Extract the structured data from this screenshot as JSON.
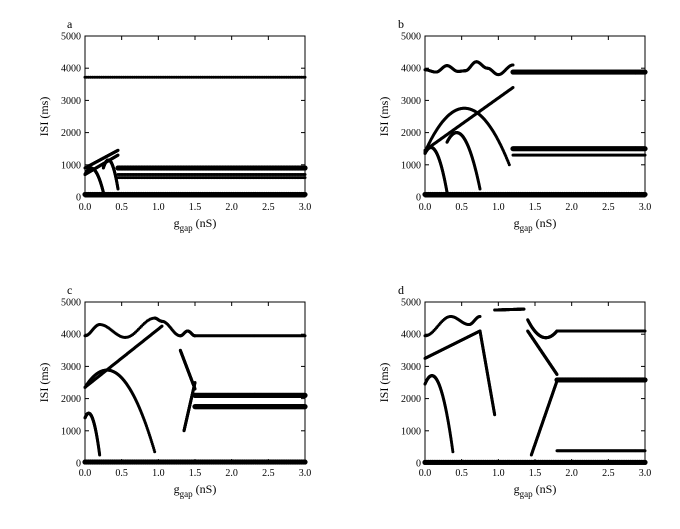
{
  "colors": {
    "ink": "#000000",
    "background": "#ffffff"
  },
  "chart_data": [
    {
      "panel": "a",
      "type": "scatter",
      "title": "",
      "xlabel": {
        "main": "g",
        "sub": "gap",
        "unit": " (nS)"
      },
      "ylabel": "ISI (ms)",
      "xlim": [
        0,
        3.0
      ],
      "ylim": [
        0,
        5000
      ],
      "xticks": [
        "0.0",
        "0.5",
        "1.0",
        "1.5",
        "2.0",
        "2.5",
        "3.0"
      ],
      "yticks": [
        "0",
        "1000",
        "2000",
        "3000",
        "4000",
        "5000"
      ],
      "series": [
        {
          "name": "branch-top",
          "x0": 0.0,
          "x1": 3.0,
          "y0": 3720,
          "y1": 3720,
          "bumps": [
            [
              0.2,
              3780
            ],
            [
              0.4,
              3800
            ],
            [
              0.47,
              3740
            ]
          ]
        },
        {
          "name": "band-upper",
          "x0": 0.45,
          "x1": 3.0,
          "y0": 900,
          "y1": 900,
          "thick": true
        },
        {
          "name": "band-mid",
          "x0": 0.45,
          "x1": 3.0,
          "y0": 700,
          "y1": 700
        },
        {
          "name": "band-low",
          "x0": 0.45,
          "x1": 3.0,
          "y0": 600,
          "y1": 600
        },
        {
          "name": "base",
          "x0": 0.0,
          "x1": 3.0,
          "y0": 80,
          "y1": 80,
          "thick": true
        },
        {
          "name": "rise-1",
          "x0": 0.0,
          "x1": 0.45,
          "y0": 900,
          "y1": 1450
        },
        {
          "name": "rise-2",
          "x0": 0.0,
          "x1": 0.45,
          "y0": 700,
          "y1": 1300
        },
        {
          "name": "arc-1",
          "x0": 0.0,
          "x1": 0.25,
          "y0": 700,
          "y1": 150,
          "peak": 850
        },
        {
          "name": "arc-2",
          "x0": 0.25,
          "x1": 0.45,
          "y0": 900,
          "y1": 250,
          "peak": 1100
        }
      ]
    },
    {
      "panel": "b",
      "type": "scatter",
      "title": "",
      "xlabel": {
        "main": "g",
        "sub": "gap",
        "unit": " (nS)"
      },
      "ylabel": "ISI (ms)",
      "xlim": [
        0,
        3.0
      ],
      "ylim": [
        0,
        5000
      ],
      "xticks": [
        "0.0",
        "0.5",
        "1.0",
        "1.5",
        "2.0",
        "2.5",
        "3.0"
      ],
      "yticks": [
        "0",
        "1000",
        "2000",
        "3000",
        "4000",
        "5000"
      ],
      "series": [
        {
          "name": "wave-top",
          "x0": 0.0,
          "x1": 1.2,
          "y0": 3950,
          "y1": 4100,
          "wave": [
            [
              0.0,
              3950
            ],
            [
              0.15,
              3880
            ],
            [
              0.3,
              4080
            ],
            [
              0.45,
              3900
            ],
            [
              0.55,
              3920
            ],
            [
              0.7,
              4200
            ],
            [
              0.85,
              4000
            ],
            [
              1.0,
              3800
            ],
            [
              1.2,
              4100
            ]
          ]
        },
        {
          "name": "plateau-top",
          "x0": 1.2,
          "x1": 3.0,
          "y0": 3880,
          "y1": 3880,
          "thick": true
        },
        {
          "name": "plateau-upper",
          "x0": 1.2,
          "x1": 3.0,
          "y0": 1500,
          "y1": 1500,
          "thick": true
        },
        {
          "name": "plateau-lower",
          "x0": 1.2,
          "x1": 3.0,
          "y0": 1300,
          "y1": 1300
        },
        {
          "name": "base",
          "x0": 0.0,
          "x1": 3.0,
          "y0": 80,
          "y1": 80,
          "thick": true
        },
        {
          "name": "rise-1",
          "x0": 0.0,
          "x1": 1.2,
          "y0": 1450,
          "y1": 3400
        },
        {
          "name": "arc-1",
          "x0": 0.0,
          "x1": 1.15,
          "y0": 1400,
          "y1": 1000,
          "peak": 2750
        },
        {
          "name": "arc-2",
          "x0": 0.0,
          "x1": 0.3,
          "y0": 1350,
          "y1": 150,
          "peak": 1400
        },
        {
          "name": "arc-3",
          "x0": 0.3,
          "x1": 0.75,
          "y0": 1700,
          "y1": 250,
          "peak": 1850
        }
      ]
    },
    {
      "panel": "c",
      "type": "scatter",
      "title": "",
      "xlabel": {
        "main": "g",
        "sub": "gap",
        "unit": " (nS)"
      },
      "ylabel": "ISI (ms)",
      "xlim": [
        0,
        3.0
      ],
      "ylim": [
        0,
        5000
      ],
      "xticks": [
        "0.0",
        "0.5",
        "1.0",
        "1.5",
        "2.0",
        "2.5",
        "3.0"
      ],
      "yticks": [
        "0",
        "1000",
        "2000",
        "3000",
        "4000",
        "5000"
      ],
      "series": [
        {
          "name": "wave-top",
          "x0": 0.0,
          "x1": 1.5,
          "y0": 3950,
          "y1": 3950,
          "wave": [
            [
              0.0,
              3950
            ],
            [
              0.2,
              4300
            ],
            [
              0.55,
              3900
            ],
            [
              0.95,
              4500
            ],
            [
              1.05,
              4400
            ],
            [
              1.3,
              3950
            ],
            [
              1.4,
              4100
            ],
            [
              1.5,
              3950
            ]
          ]
        },
        {
          "name": "plateau-top",
          "x0": 1.5,
          "x1": 3.0,
          "y0": 3950,
          "y1": 3950
        },
        {
          "name": "plateau-upper",
          "x0": 1.5,
          "x1": 3.0,
          "y0": 2100,
          "y1": 2100,
          "thick": true
        },
        {
          "name": "plateau-lower",
          "x0": 1.5,
          "x1": 3.0,
          "y0": 1750,
          "y1": 1750,
          "thick": true
        },
        {
          "name": "base",
          "x0": 0.0,
          "x1": 3.0,
          "y0": 30,
          "y1": 30,
          "thick": true
        },
        {
          "name": "rise-1",
          "x0": 0.0,
          "x1": 1.05,
          "y0": 2350,
          "y1": 4250
        },
        {
          "name": "arc-1",
          "x0": 0.0,
          "x1": 0.95,
          "y0": 2350,
          "y1": 350,
          "peak": 2700
        },
        {
          "name": "arc-2",
          "x0": 0.0,
          "x1": 0.2,
          "y0": 1400,
          "y1": 250,
          "peak": 1400
        },
        {
          "name": "drop-1",
          "x0": 1.3,
          "x1": 1.5,
          "y0": 3500,
          "y1": 2300
        },
        {
          "name": "rise-2",
          "x0": 1.35,
          "x1": 1.5,
          "y0": 1000,
          "y1": 2500
        }
      ]
    },
    {
      "panel": "d",
      "type": "scatter",
      "title": "",
      "xlabel": {
        "main": "g",
        "sub": "gap",
        "unit": " (nS)"
      },
      "ylabel": "ISI (ms)",
      "xlim": [
        0,
        3.0
      ],
      "ylim": [
        0,
        5000
      ],
      "xticks": [
        "0.0",
        "0.5",
        "1.0",
        "1.5",
        "2.0",
        "2.5",
        "3.0"
      ],
      "yticks": [
        "0",
        "1000",
        "2000",
        "3000",
        "4000",
        "5000"
      ],
      "series": [
        {
          "name": "wave-top",
          "x0": 0.0,
          "x1": 0.75,
          "y0": 3950,
          "y1": 4250,
          "wave": [
            [
              0.0,
              3950
            ],
            [
              0.35,
              4550
            ],
            [
              0.6,
              4300
            ],
            [
              0.75,
              4550
            ]
          ]
        },
        {
          "name": "hump-top",
          "x0": 0.95,
          "x1": 1.35,
          "y0": 4750,
          "y1": 4780
        },
        {
          "name": "arc-right",
          "x0": 1.4,
          "x1": 1.8,
          "y0": 4450,
          "y1": 4100,
          "peak": 3850,
          "dip": true
        },
        {
          "name": "plateau-top",
          "x0": 1.8,
          "x1": 3.0,
          "y0": 4100,
          "y1": 4100
        },
        {
          "name": "plateau-upper",
          "x0": 1.8,
          "x1": 3.0,
          "y0": 2580,
          "y1": 2580,
          "thick": true
        },
        {
          "name": "plateau-low",
          "x0": 1.8,
          "x1": 3.0,
          "y0": 380,
          "y1": 380
        },
        {
          "name": "base",
          "x0": 0.0,
          "x1": 3.0,
          "y0": 20,
          "y1": 20,
          "thick": true
        },
        {
          "name": "rise-1",
          "x0": 0.0,
          "x1": 0.75,
          "y0": 3250,
          "y1": 4100
        },
        {
          "name": "drop-1",
          "x0": 0.75,
          "x1": 0.95,
          "y0": 4100,
          "y1": 1500
        },
        {
          "name": "arc-1",
          "x0": 0.0,
          "x1": 0.38,
          "y0": 2450,
          "y1": 350,
          "peak": 2450
        },
        {
          "name": "fall-right",
          "x0": 1.4,
          "x1": 1.8,
          "y0": 4100,
          "y1": 2750
        },
        {
          "name": "rise-right",
          "x0": 1.45,
          "x1": 1.8,
          "y0": 250,
          "y1": 2550
        }
      ]
    }
  ]
}
